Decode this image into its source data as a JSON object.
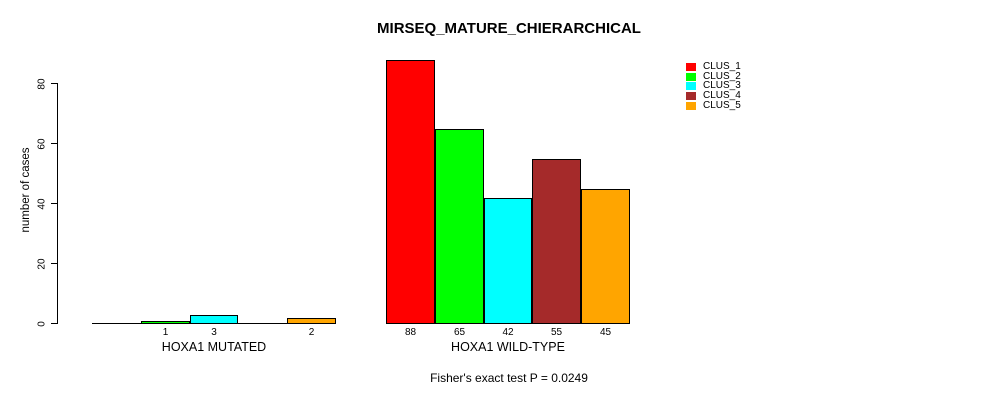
{
  "chart_data": {
    "type": "bar",
    "title": "MIRSEQ_MATURE_CHIERARCHICAL",
    "xlabel": "",
    "ylabel": "number of cases",
    "yticks": [
      0,
      20,
      40,
      60,
      80
    ],
    "ylim": [
      0,
      88
    ],
    "grid": false,
    "legend_position": "top-right",
    "series": [
      "CLUS_1",
      "CLUS_2",
      "CLUS_3",
      "CLUS_4",
      "CLUS_5"
    ],
    "colors": [
      "#ff0000",
      "#00ff00",
      "#00ffff",
      "#a52a2a",
      "#ffa500"
    ],
    "groups": [
      {
        "label": "HOXA1 MUTATED",
        "values": [
          0,
          1,
          3,
          0,
          2
        ],
        "bar_labels": [
          "",
          "1",
          "3",
          "",
          "2"
        ]
      },
      {
        "label": "HOXA1 WILD-TYPE",
        "values": [
          88,
          65,
          42,
          55,
          45
        ],
        "bar_labels": [
          "88",
          "65",
          "42",
          "55",
          "45"
        ]
      }
    ],
    "legend": {
      "entries": [
        {
          "label": "CLUS_1",
          "color": "#ff0000"
        },
        {
          "label": "CLUS_2",
          "color": "#00ff00"
        },
        {
          "label": "CLUS_3",
          "color": "#00ffff"
        },
        {
          "label": "CLUS_4",
          "color": "#a52a2a"
        },
        {
          "label": "CLUS_5",
          "color": "#ffa500"
        }
      ]
    },
    "annotation": "Fisher's exact test P = 0.0249"
  }
}
